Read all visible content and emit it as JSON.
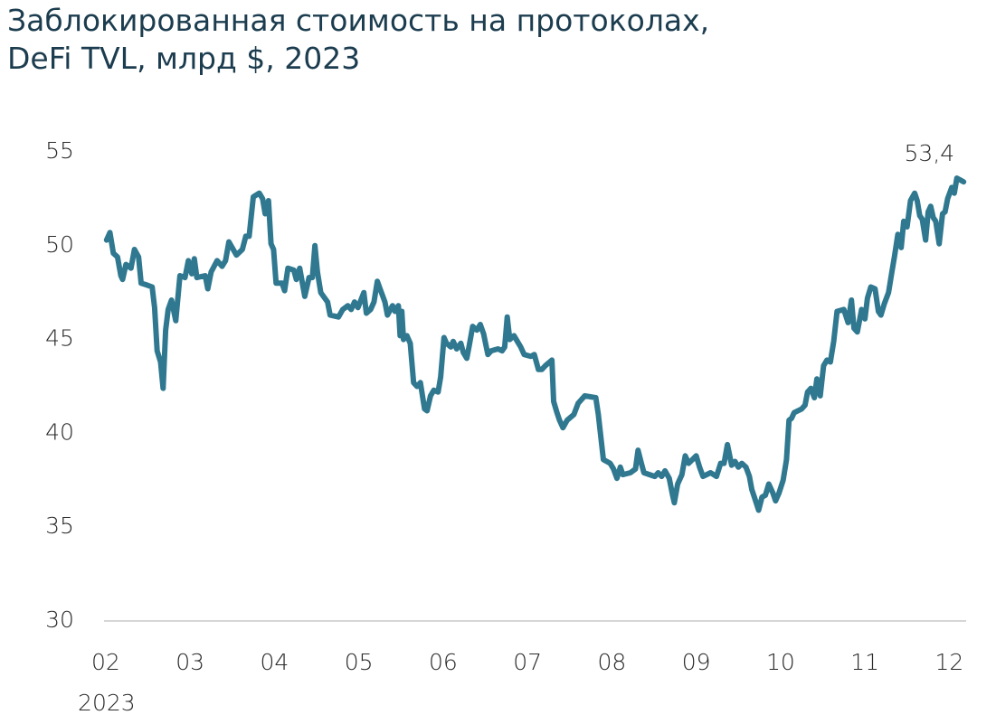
{
  "chart_data": {
    "type": "line",
    "title": [
      "Заблокированная стоимость на протоколах,",
      "DeFi TVL, млрд $, 2023"
    ],
    "color": "#2f7890",
    "x": [
      2.01,
      2.05,
      2.09,
      2.14,
      2.18,
      2.2,
      2.24,
      2.3,
      2.34,
      2.39,
      2.42,
      2.49,
      2.55,
      2.58,
      2.61,
      2.65,
      2.68,
      2.71,
      2.74,
      2.78,
      2.83,
      2.88,
      2.94,
      2.98,
      3.02,
      3.05,
      3.08,
      3.18,
      3.21,
      3.25,
      3.32,
      3.38,
      3.42,
      3.46,
      3.55,
      3.62,
      3.66,
      3.7,
      3.75,
      3.82,
      3.86,
      3.89,
      3.93,
      3.96,
      3.99,
      4.02,
      4.09,
      4.12,
      4.16,
      4.23,
      4.26,
      4.3,
      4.36,
      4.41,
      4.45,
      4.48,
      4.51,
      4.55,
      4.63,
      4.66,
      4.76,
      4.81,
      4.87,
      4.91,
      4.95,
      4.99,
      5.06,
      5.09,
      5.14,
      5.18,
      5.22,
      5.26,
      5.31,
      5.34,
      5.4,
      5.43,
      5.47,
      5.49,
      5.51,
      5.53,
      5.57,
      5.61,
      5.65,
      5.69,
      5.73,
      5.78,
      5.81,
      5.85,
      5.89,
      5.94,
      5.97,
      6.01,
      6.04,
      6.09,
      6.12,
      6.16,
      6.21,
      6.24,
      6.28,
      6.31,
      6.35,
      6.4,
      6.44,
      6.48,
      6.53,
      6.57,
      6.65,
      6.7,
      6.73,
      6.76,
      6.79,
      6.84,
      6.88,
      6.92,
      6.96,
      7.04,
      7.08,
      7.13,
      7.17,
      7.21,
      7.29,
      7.31,
      7.35,
      7.38,
      7.42,
      7.47,
      7.55,
      7.6,
      7.64,
      7.68,
      7.81,
      7.84,
      7.87,
      7.9,
      7.98,
      8.02,
      8.06,
      8.1,
      8.13,
      8.22,
      8.28,
      8.31,
      8.35,
      8.38,
      8.51,
      8.55,
      8.59,
      8.63,
      8.68,
      8.72,
      8.74,
      8.78,
      8.83,
      8.87,
      8.91,
      9.0,
      9.04,
      9.08,
      9.17,
      9.24,
      9.29,
      9.33,
      9.37,
      9.42,
      9.46,
      9.5,
      9.54,
      9.59,
      9.63,
      9.66,
      9.69,
      9.74,
      9.78,
      9.82,
      9.86,
      9.91,
      9.94,
      9.98,
      10.03,
      10.07,
      10.1,
      10.13,
      10.16,
      10.25,
      10.29,
      10.32,
      10.36,
      10.4,
      10.43,
      10.47,
      10.51,
      10.55,
      10.59,
      10.63,
      10.67,
      10.75,
      10.8,
      10.84,
      10.87,
      10.91,
      10.96,
      11.0,
      11.03,
      11.07,
      11.12,
      11.16,
      11.19,
      11.23,
      11.28,
      11.32,
      11.35,
      11.39,
      11.43,
      11.46,
      11.5,
      11.54,
      11.59,
      11.62,
      11.65,
      11.68,
      11.72,
      11.75,
      11.78,
      11.81,
      11.84,
      11.88,
      11.92,
      11.95,
      11.98,
      12.03,
      12.06,
      12.09,
      12.13,
      12.17
    ],
    "values": [
      50.3,
      50.7,
      49.6,
      49.4,
      48.4,
      48.2,
      49.0,
      48.8,
      49.8,
      49.4,
      48.0,
      47.9,
      47.8,
      46.7,
      44.4,
      43.8,
      42.4,
      45.5,
      46.6,
      47.1,
      46.0,
      48.4,
      48.3,
      49.2,
      48.5,
      49.3,
      48.3,
      48.4,
      47.7,
      48.6,
      49.2,
      48.9,
      49.2,
      50.2,
      49.5,
      49.8,
      50.5,
      50.5,
      52.6,
      52.8,
      52.5,
      51.7,
      52.4,
      50.1,
      49.8,
      48.0,
      48.0,
      47.6,
      48.8,
      48.7,
      48.2,
      48.8,
      47.3,
      48.3,
      48.3,
      50.0,
      48.6,
      47.5,
      47.0,
      46.3,
      46.2,
      46.6,
      46.8,
      46.6,
      47.0,
      46.7,
      47.5,
      46.4,
      46.6,
      47.0,
      48.1,
      47.6,
      47.0,
      46.3,
      46.8,
      46.5,
      46.8,
      45.2,
      46.5,
      45.0,
      45.2,
      44.8,
      42.7,
      42.5,
      42.7,
      41.3,
      41.2,
      42.0,
      42.3,
      42.2,
      43.0,
      45.1,
      44.8,
      44.6,
      44.9,
      44.5,
      44.8,
      44.3,
      44.0,
      44.7,
      45.7,
      45.5,
      45.8,
      45.3,
      44.2,
      44.4,
      44.5,
      44.4,
      44.6,
      46.2,
      45.0,
      45.2,
      44.9,
      44.6,
      44.2,
      44.1,
      44.2,
      43.4,
      43.4,
      43.6,
      43.9,
      41.7,
      41.1,
      40.7,
      40.3,
      40.7,
      41.0,
      41.6,
      41.8,
      42.0,
      41.9,
      41.0,
      39.8,
      38.6,
      38.4,
      38.1,
      37.6,
      38.2,
      37.8,
      37.9,
      38.1,
      39.1,
      38.4,
      37.9,
      37.7,
      37.9,
      37.7,
      38.0,
      37.6,
      36.7,
      36.3,
      37.3,
      37.8,
      38.8,
      38.4,
      38.8,
      38.2,
      37.7,
      37.9,
      37.7,
      38.4,
      38.4,
      39.4,
      38.3,
      38.5,
      38.2,
      38.4,
      38.2,
      37.7,
      37.0,
      36.6,
      35.9,
      36.6,
      36.7,
      37.3,
      36.8,
      36.4,
      36.8,
      37.5,
      38.6,
      40.7,
      40.8,
      41.1,
      41.3,
      41.5,
      42.2,
      42.4,
      41.9,
      42.9,
      42.0,
      43.6,
      43.9,
      43.8,
      44.9,
      46.5,
      46.6,
      45.9,
      47.1,
      45.6,
      45.4,
      46.6,
      46.1,
      47.2,
      47.8,
      47.7,
      46.5,
      46.3,
      46.9,
      47.5,
      48.6,
      49.4,
      50.6,
      49.9,
      51.3,
      51.0,
      52.4,
      52.8,
      52.4,
      51.6,
      51.4,
      50.3,
      51.8,
      52.1,
      51.5,
      51.3,
      50.1,
      51.7,
      51.8,
      52.5,
      53.1,
      52.8,
      53.6,
      53.5,
      53.4
    ],
    "end_label": "53,4",
    "xlim": [
      1.98,
      12.2
    ],
    "xticks": [
      {
        "value": 2,
        "label": "02"
      },
      {
        "value": 3,
        "label": "03"
      },
      {
        "value": 4,
        "label": "04"
      },
      {
        "value": 5,
        "label": "05"
      },
      {
        "value": 6,
        "label": "06"
      },
      {
        "value": 7,
        "label": "07"
      },
      {
        "value": 8,
        "label": "08"
      },
      {
        "value": 9,
        "label": "09"
      },
      10,
      11,
      12
    ],
    "xtick_year": "2023",
    "ylim": [
      30,
      55
    ],
    "yticks": [
      30,
      35,
      40,
      45,
      50,
      55
    ],
    "grid": false
  }
}
